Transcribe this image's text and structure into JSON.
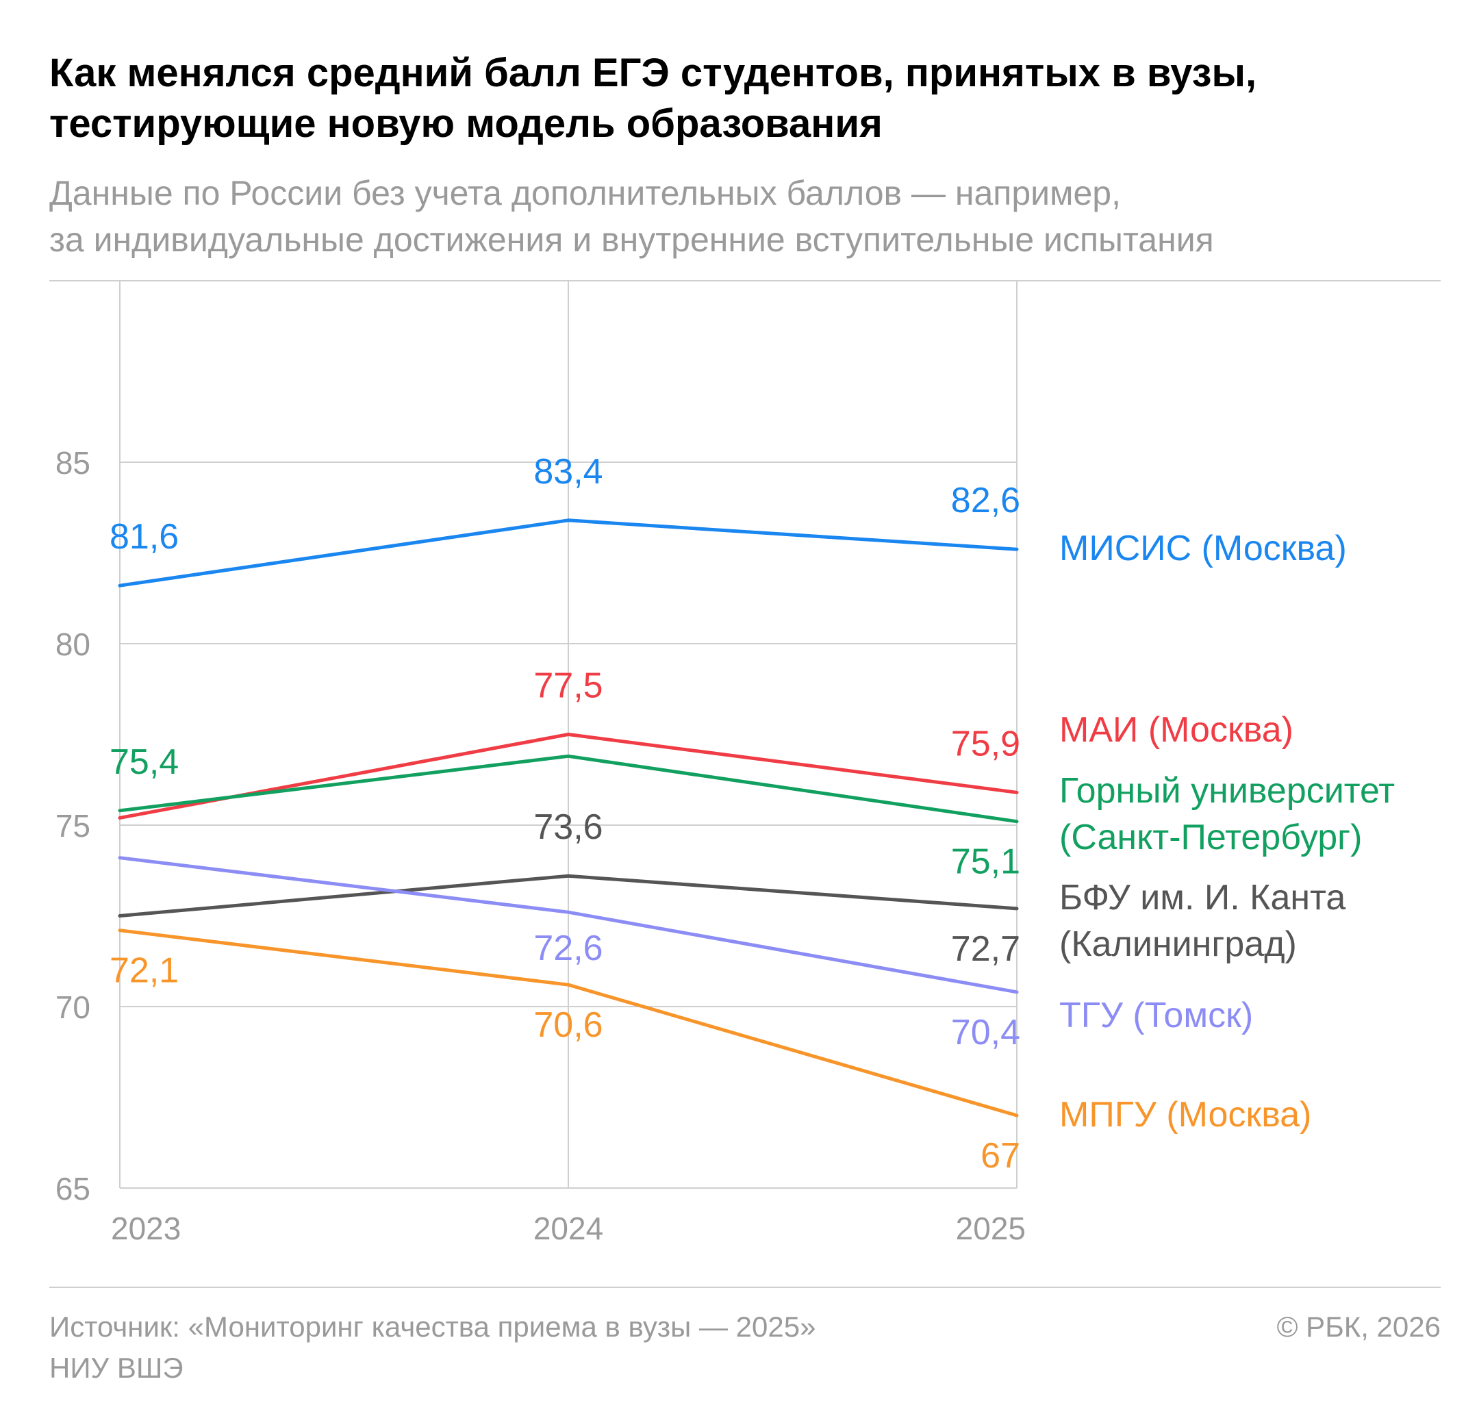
{
  "header": {
    "title_line1": "Как менялся средний балл ЕГЭ студентов, принятых в вузы,",
    "title_line2": "тестирующие новую модель образования",
    "subtitle_line1": "Данные по России без учета дополнительных баллов — например,",
    "subtitle_line2": "за индивидуальные достижения и внутренние вступительные испытания"
  },
  "footer": {
    "source_line1": "Источник: «Мониторинг качества приема в вузы — 2025»",
    "source_line2": "НИУ ВШЭ",
    "copyright": "© РБК, 2026"
  },
  "chart_data": {
    "type": "line",
    "title": "Как менялся средний балл ЕГЭ студентов, принятых в вузы, тестирующие новую модель образования",
    "x": [
      "2023",
      "2024",
      "2025"
    ],
    "ylim": [
      65,
      90
    ],
    "yticks": [
      65,
      70,
      75,
      80,
      85
    ],
    "ytick_labels": [
      "65",
      "70",
      "75",
      "80",
      "85"
    ],
    "grid": true,
    "series": [
      {
        "name": "МИСИС (Москва)",
        "label_lines": [
          "МИСИС (Москва)"
        ],
        "color": "#1a86f0",
        "values": [
          81.6,
          83.4,
          82.6
        ],
        "labels": [
          "81,6",
          "83,4",
          "82,6"
        ]
      },
      {
        "name": "МАИ (Москва)",
        "label_lines": [
          "МАИ (Москва)"
        ],
        "color": "#f03c44",
        "values": [
          75.2,
          77.5,
          75.9
        ],
        "labels": [
          "",
          "77,5",
          "75,9"
        ]
      },
      {
        "name": "Горный университет (Санкт-Петербург)",
        "label_lines": [
          "Горный университет",
          "(Санкт-Петербург)"
        ],
        "color": "#12a060",
        "values": [
          75.4,
          76.9,
          75.1
        ],
        "labels": [
          "75,4",
          "",
          "75,1"
        ]
      },
      {
        "name": "БФУ им. И. Канта (Калининград)",
        "label_lines": [
          "БФУ им. И. Канта",
          "(Калининград)"
        ],
        "color": "#555555",
        "values": [
          72.5,
          73.6,
          72.7
        ],
        "labels": [
          "",
          "73,6",
          "72,7"
        ]
      },
      {
        "name": "ТГУ (Томск)",
        "label_lines": [
          "ТГУ (Томск)"
        ],
        "color": "#8c8cf5",
        "values": [
          74.1,
          72.6,
          70.4
        ],
        "labels": [
          "",
          "72,6",
          "70,4"
        ]
      },
      {
        "name": "МПГУ (Москва)",
        "label_lines": [
          "МПГУ (Москва)"
        ],
        "color": "#f7952a",
        "values": [
          72.1,
          70.6,
          67.0
        ],
        "labels": [
          "72,1",
          "70,6",
          "67"
        ]
      }
    ]
  }
}
